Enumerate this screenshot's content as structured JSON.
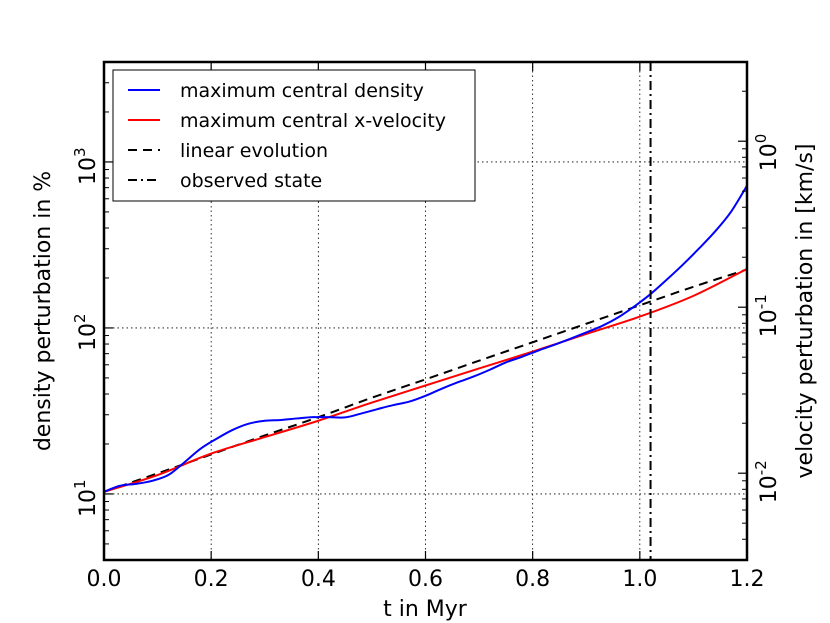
{
  "chart_data": {
    "type": "line",
    "title": "",
    "xlabel": "t in Myr",
    "ylabel_left": "density perturbation in %",
    "ylabel_right": "velocity perturbation in [km/s]",
    "xlim": [
      0.0,
      1.2
    ],
    "ylim_left": [
      4.0,
      4000.0
    ],
    "ylim_right": [
      0.003,
      3.0
    ],
    "yscale": "log",
    "grid": true,
    "legend_position": "top-left",
    "x_ticks": [
      {
        "value": 0.0,
        "label": "0.0"
      },
      {
        "value": 0.2,
        "label": "0.2"
      },
      {
        "value": 0.4,
        "label": "0.4"
      },
      {
        "value": 0.6,
        "label": "0.6"
      },
      {
        "value": 0.8,
        "label": "0.8"
      },
      {
        "value": 1.0,
        "label": "1.0"
      },
      {
        "value": 1.2,
        "label": "1.2"
      }
    ],
    "y_left_ticks": [
      {
        "value": 10,
        "base": "10",
        "exp": "1"
      },
      {
        "value": 100,
        "base": "10",
        "exp": "2"
      },
      {
        "value": 1000,
        "base": "10",
        "exp": "3"
      }
    ],
    "y_right_ticks": [
      {
        "value": 0.01,
        "base": "10",
        "exp": "-2"
      },
      {
        "value": 0.1,
        "base": "10",
        "exp": "-1"
      },
      {
        "value": 1,
        "base": "10",
        "exp": "0"
      }
    ],
    "series": [
      {
        "name": "maximum central density",
        "color": "#0000ff",
        "style": "solid",
        "axis": "left",
        "x": [
          0.0,
          0.03,
          0.06,
          0.09,
          0.12,
          0.15,
          0.18,
          0.21,
          0.24,
          0.27,
          0.3,
          0.33,
          0.36,
          0.39,
          0.42,
          0.45,
          0.48,
          0.51,
          0.54,
          0.57,
          0.6,
          0.63,
          0.66,
          0.69,
          0.72,
          0.75,
          0.78,
          0.81,
          0.84,
          0.87,
          0.9,
          0.93,
          0.96,
          0.99,
          1.02,
          1.05,
          1.08,
          1.11,
          1.14,
          1.17,
          1.2
        ],
        "values": [
          10.3,
          11.2,
          11.5,
          12.0,
          13.0,
          15.5,
          18.7,
          21.5,
          24.3,
          26.5,
          27.6,
          27.9,
          28.5,
          29.0,
          29.0,
          28.9,
          30.5,
          32.4,
          34.3,
          36.0,
          39.0,
          43.0,
          47.0,
          51.0,
          56.0,
          62.0,
          67.0,
          73.0,
          79.0,
          86.0,
          94.0,
          103.0,
          116.0,
          135.0,
          160.0,
          195.0,
          240.0,
          300.0,
          380.0,
          500.0,
          720.0
        ]
      },
      {
        "name": "maximum central x-velocity",
        "color": "#ff0000",
        "style": "solid",
        "axis": "left",
        "x": [
          0.0,
          0.1,
          0.2,
          0.3,
          0.4,
          0.5,
          0.6,
          0.7,
          0.8,
          0.9,
          1.0,
          1.1,
          1.2
        ],
        "values": [
          10.3,
          13.0,
          17.5,
          22.0,
          27.6,
          35.5,
          45.0,
          57.0,
          72.0,
          92.0,
          117.0,
          156.0,
          227.0
        ]
      },
      {
        "name": "linear evolution",
        "color": "#000000",
        "style": "dashed",
        "axis": "left",
        "x": [
          0.0,
          0.1,
          0.2,
          0.3,
          0.4,
          0.5,
          0.6,
          0.7,
          0.8,
          0.9,
          1.0,
          1.1,
          1.2
        ],
        "values": [
          10.3,
          13.3,
          17.3,
          22.5,
          29.0,
          38.0,
          49.0,
          63.5,
          82.0,
          106.0,
          137.0,
          177.0,
          225.0
        ]
      },
      {
        "name": "observed state",
        "color": "#000000",
        "style": "dashdot",
        "type": "vline",
        "x_value": 1.02
      }
    ]
  }
}
